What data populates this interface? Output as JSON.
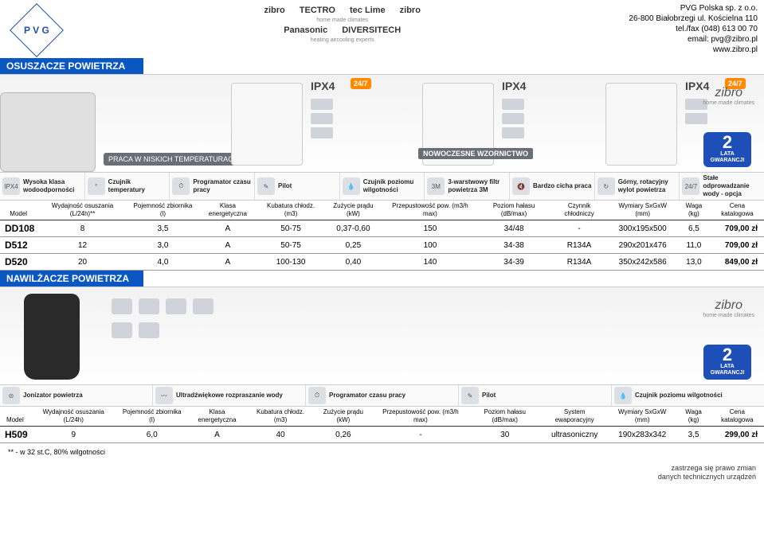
{
  "company": {
    "logo_text": "P V G",
    "name": "PVG Polska sp. z o.o.",
    "address": "26-800 Białobrzegi ul. Kościelna 110",
    "phone": "tel./fax (048) 613 00 70",
    "email": "email: pvg@zibro.pl",
    "web": "www.zibro.pl"
  },
  "brands": {
    "top": [
      "zibro",
      "TECTRO",
      "tec Lime",
      "zibro"
    ],
    "mid": [
      "Panasonic",
      "DIVERSITECH"
    ],
    "sub1": "home made climates",
    "sub2": "heating aircooling experts"
  },
  "sections": {
    "dehumid_title": "OSUSZACZE POWIETRZA",
    "humid_title": "NAWILŻACZE POWIETRZA"
  },
  "banner1": {
    "badge_left": "PRACA W NISKICH TEMPERATURACH",
    "badge_right": "NOWOCZESNE WZORNICTWO",
    "ipx": "IPX4",
    "b247": "24/7",
    "zibro": "zibro",
    "zibro_sub": "home made climates",
    "gwar_num": "2",
    "gwar_lata": "LATA",
    "gwar_txt": "GWARANCJI"
  },
  "features1": [
    {
      "icon": "IPX4",
      "label": "Wysoka klasa wodoodporności"
    },
    {
      "icon": "°",
      "label": "Czujnik temperatury"
    },
    {
      "icon": "⏱",
      "label": "Programator czasu pracy"
    },
    {
      "icon": "✎",
      "label": "Pilot"
    },
    {
      "icon": "💧",
      "label": "Czujnik poziomu wilgotności"
    },
    {
      "icon": "3M",
      "label": "3-warstwowy filtr powietrza 3M"
    },
    {
      "icon": "🔇",
      "label": "Bardzo cicha praca"
    },
    {
      "icon": "↻",
      "label": "Górny, rotacyjny wylot powietrza"
    },
    {
      "icon": "24/7",
      "label": "Stałe odprowadzanie wody - opcja"
    }
  ],
  "table1": {
    "headers": {
      "model": "Model",
      "wyd": "Wydajność osuszania (L/24h)**",
      "poj": "Pojemność zbiornika (l)",
      "klasa": "Klasa energetyczna",
      "kub": "Kubatura chłodz. (m3)",
      "zuz": "Zużycie prądu (kW)",
      "prz": "Przepustowość pow. (m3/h max)",
      "hal": "Poziom hałasu (dB/max)",
      "czyn": "Czynnik chłodniczy",
      "wym": "Wymiary SxGxW (mm)",
      "waga": "Waga (kg)",
      "cena": "Cena katalogowa"
    },
    "rows": [
      {
        "model": "DD108",
        "wyd": "8",
        "poj": "3,5",
        "klasa": "A",
        "kub": "50-75",
        "zuz": "0,37-0,60",
        "prz": "150",
        "hal": "34/48",
        "czyn": "-",
        "wym": "300x195x500",
        "waga": "6,5",
        "cena": "709,00 zł"
      },
      {
        "model": "D512",
        "wyd": "12",
        "poj": "3,0",
        "klasa": "A",
        "kub": "50-75",
        "zuz": "0,25",
        "prz": "100",
        "hal": "34-38",
        "czyn": "R134A",
        "wym": "290x201x476",
        "waga": "11,0",
        "cena": "709,00 zł"
      },
      {
        "model": "D520",
        "wyd": "20",
        "poj": "4,0",
        "klasa": "A",
        "kub": "100-130",
        "zuz": "0,40",
        "prz": "140",
        "hal": "34-39",
        "czyn": "R134A",
        "wym": "350x242x586",
        "waga": "13,0",
        "cena": "849,00 zł"
      }
    ]
  },
  "features2": [
    {
      "icon": "⊝",
      "label": "Jonizator powietrza"
    },
    {
      "icon": "〰",
      "label": "Ultradźwiękowe rozpraszanie wody"
    },
    {
      "icon": "⏱",
      "label": "Programator czasu pracy"
    },
    {
      "icon": "✎",
      "label": "Pilot"
    },
    {
      "icon": "💧",
      "label": "Czujnik poziomu wilgotności"
    }
  ],
  "table2": {
    "headers": {
      "model": "Model",
      "wyd": "Wydajność osuszania (L/24h)",
      "poj": "Pojemność zbiornika (l)",
      "klasa": "Klasa energetyczna",
      "kub": "Kubatura chłodz. (m3)",
      "zuz": "Zużycie prądu (kW)",
      "prz": "Przepustowość pow. (m3/h max)",
      "hal": "Poziom hałasu (dB/max)",
      "sys": "System ewaporacyjny",
      "wym": "Wymiary SxGxW (mm)",
      "waga": "Waga (kg)",
      "cena": "Cena katalogowa"
    },
    "rows": [
      {
        "model": "H509",
        "wyd": "9",
        "poj": "6,0",
        "klasa": "A",
        "kub": "40",
        "zuz": "0,26",
        "prz": "-",
        "hal": "30",
        "sys": "ultrasoniczny",
        "wym": "190x283x342",
        "waga": "3,5",
        "cena": "299,00 zł"
      }
    ]
  },
  "footnote": "** - w 32 st.C, 80% wilgotności",
  "footer": {
    "l1": "zastrzega się prawo zmian",
    "l2": "danych technicznych urządzeń"
  }
}
